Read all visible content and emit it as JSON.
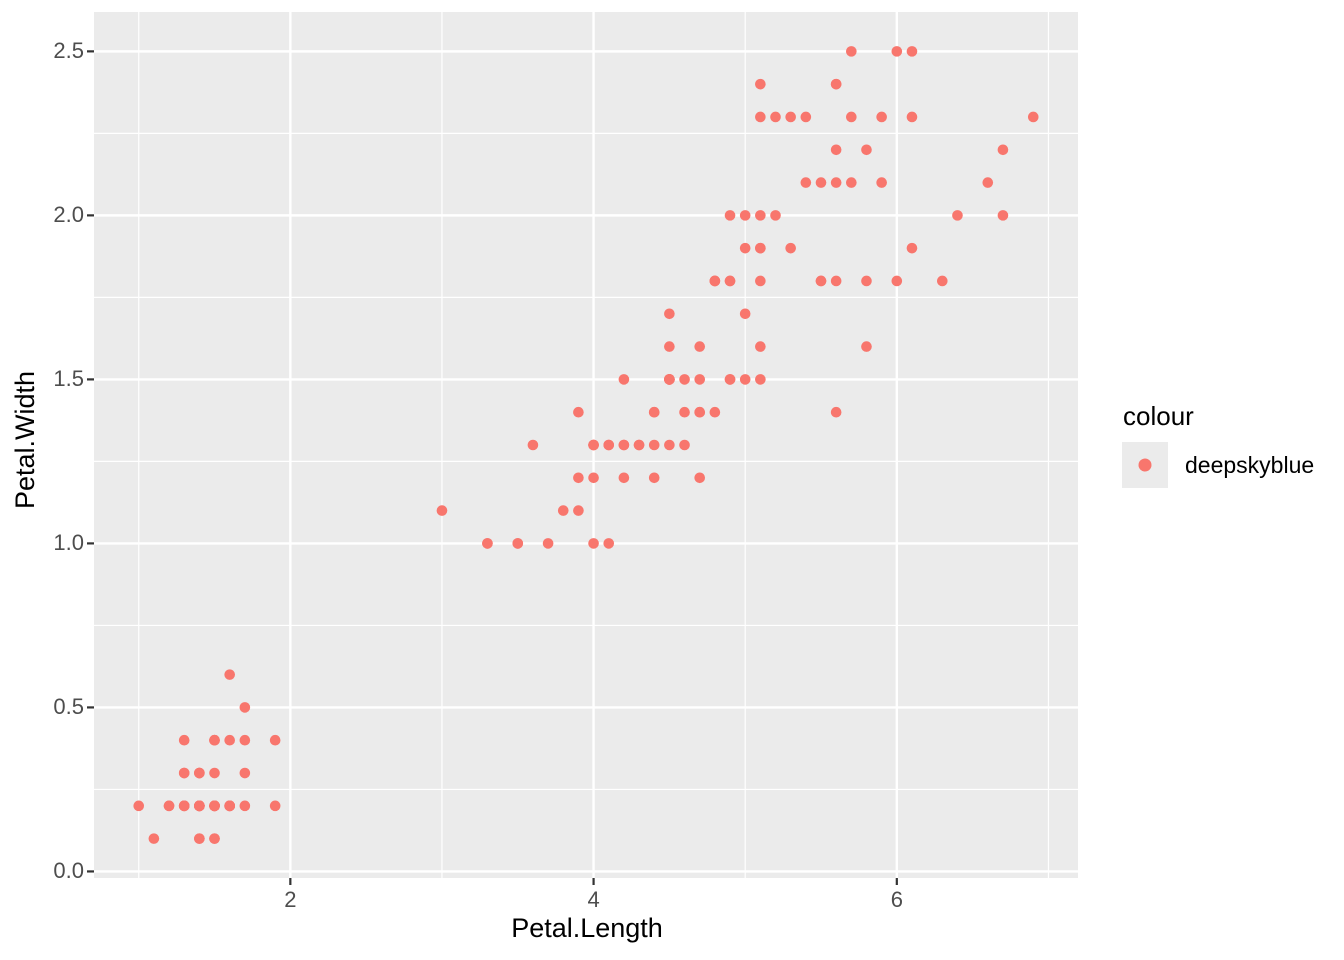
{
  "colors": {
    "background": "#FFFFFF",
    "panel_bg": "#EBEBEB",
    "grid": "#FFFFFF",
    "point": "#F8766D",
    "tick_mark": "#333333",
    "tick_label": "#4D4D4D",
    "axis_title": "#000000",
    "legend_key_bg": "#EBEBEB"
  },
  "chart_data": {
    "type": "scatter",
    "title": "",
    "xlabel": "Petal.Length",
    "ylabel": "Petal.Width",
    "xlim": [
      0.705,
      7.195
    ],
    "ylim": [
      -0.02,
      2.62
    ],
    "x_major_ticks": [
      2,
      4,
      6
    ],
    "x_tick_labels": [
      "2",
      "4",
      "6"
    ],
    "x_minor_ticks": [
      1,
      3,
      5,
      7
    ],
    "y_major_ticks": [
      0,
      0.5,
      1,
      1.5,
      2,
      2.5
    ],
    "y_tick_labels": [
      "0.0",
      "0.5",
      "1.0",
      "1.5",
      "2.0",
      "2.5"
    ],
    "y_minor_ticks": [
      0.25,
      0.75,
      1.25,
      1.75,
      2.25
    ],
    "grid": "on",
    "legend": {
      "title": "colour",
      "position": "right",
      "entries": [
        {
          "label": "deepskyblue",
          "color": "#F8766D",
          "marker": "circle"
        }
      ]
    },
    "series": [
      {
        "name": "deepskyblue",
        "color": "#F8766D",
        "points": [
          [
            1.4,
            0.2
          ],
          [
            1.4,
            0.2
          ],
          [
            1.3,
            0.2
          ],
          [
            1.5,
            0.2
          ],
          [
            1.4,
            0.2
          ],
          [
            1.7,
            0.4
          ],
          [
            1.4,
            0.3
          ],
          [
            1.5,
            0.2
          ],
          [
            1.4,
            0.2
          ],
          [
            1.5,
            0.1
          ],
          [
            1.5,
            0.2
          ],
          [
            1.6,
            0.2
          ],
          [
            1.4,
            0.1
          ],
          [
            1.1,
            0.1
          ],
          [
            1.2,
            0.2
          ],
          [
            1.5,
            0.4
          ],
          [
            1.3,
            0.4
          ],
          [
            1.4,
            0.3
          ],
          [
            1.7,
            0.3
          ],
          [
            1.5,
            0.3
          ],
          [
            1.7,
            0.2
          ],
          [
            1.5,
            0.4
          ],
          [
            1.0,
            0.2
          ],
          [
            1.7,
            0.5
          ],
          [
            1.9,
            0.2
          ],
          [
            1.6,
            0.2
          ],
          [
            1.6,
            0.4
          ],
          [
            1.5,
            0.2
          ],
          [
            1.4,
            0.2
          ],
          [
            1.6,
            0.2
          ],
          [
            1.6,
            0.2
          ],
          [
            1.5,
            0.4
          ],
          [
            1.5,
            0.1
          ],
          [
            1.4,
            0.2
          ],
          [
            1.5,
            0.2
          ],
          [
            1.2,
            0.2
          ],
          [
            1.3,
            0.2
          ],
          [
            1.4,
            0.1
          ],
          [
            1.3,
            0.2
          ],
          [
            1.5,
            0.2
          ],
          [
            1.3,
            0.3
          ],
          [
            1.3,
            0.3
          ],
          [
            1.3,
            0.2
          ],
          [
            1.6,
            0.6
          ],
          [
            1.9,
            0.4
          ],
          [
            1.4,
            0.3
          ],
          [
            1.6,
            0.2
          ],
          [
            1.4,
            0.2
          ],
          [
            1.5,
            0.2
          ],
          [
            1.4,
            0.2
          ],
          [
            4.7,
            1.4
          ],
          [
            4.5,
            1.5
          ],
          [
            4.9,
            1.5
          ],
          [
            4.0,
            1.3
          ],
          [
            4.6,
            1.5
          ],
          [
            4.5,
            1.3
          ],
          [
            4.7,
            1.6
          ],
          [
            3.3,
            1.0
          ],
          [
            4.6,
            1.3
          ],
          [
            3.9,
            1.4
          ],
          [
            3.5,
            1.0
          ],
          [
            4.2,
            1.5
          ],
          [
            4.0,
            1.0
          ],
          [
            4.7,
            1.4
          ],
          [
            3.6,
            1.3
          ],
          [
            4.4,
            1.4
          ],
          [
            4.5,
            1.5
          ],
          [
            4.1,
            1.0
          ],
          [
            4.5,
            1.5
          ],
          [
            3.9,
            1.1
          ],
          [
            4.8,
            1.8
          ],
          [
            4.0,
            1.3
          ],
          [
            4.9,
            1.5
          ],
          [
            4.7,
            1.2
          ],
          [
            4.3,
            1.3
          ],
          [
            4.4,
            1.4
          ],
          [
            4.8,
            1.4
          ],
          [
            5.0,
            1.7
          ],
          [
            4.5,
            1.5
          ],
          [
            3.5,
            1.0
          ],
          [
            3.8,
            1.1
          ],
          [
            3.7,
            1.0
          ],
          [
            3.9,
            1.2
          ],
          [
            5.1,
            1.6
          ],
          [
            4.5,
            1.5
          ],
          [
            4.5,
            1.6
          ],
          [
            4.7,
            1.5
          ],
          [
            4.4,
            1.3
          ],
          [
            4.1,
            1.3
          ],
          [
            4.0,
            1.3
          ],
          [
            4.4,
            1.2
          ],
          [
            4.6,
            1.4
          ],
          [
            4.0,
            1.2
          ],
          [
            3.3,
            1.0
          ],
          [
            4.2,
            1.3
          ],
          [
            4.2,
            1.2
          ],
          [
            4.2,
            1.3
          ],
          [
            4.3,
            1.3
          ],
          [
            3.0,
            1.1
          ],
          [
            4.1,
            1.3
          ],
          [
            6.0,
            2.5
          ],
          [
            5.1,
            1.9
          ],
          [
            5.9,
            2.1
          ],
          [
            5.6,
            1.8
          ],
          [
            5.8,
            2.2
          ],
          [
            6.6,
            2.1
          ],
          [
            4.5,
            1.7
          ],
          [
            6.3,
            1.8
          ],
          [
            5.8,
            1.8
          ],
          [
            6.1,
            2.5
          ],
          [
            5.1,
            2.0
          ],
          [
            5.3,
            1.9
          ],
          [
            5.5,
            2.1
          ],
          [
            5.0,
            2.0
          ],
          [
            5.1,
            2.4
          ],
          [
            5.3,
            2.3
          ],
          [
            5.5,
            1.8
          ],
          [
            6.7,
            2.2
          ],
          [
            6.9,
            2.3
          ],
          [
            5.0,
            1.5
          ],
          [
            5.7,
            2.3
          ],
          [
            4.9,
            2.0
          ],
          [
            6.7,
            2.0
          ],
          [
            4.9,
            1.8
          ],
          [
            5.7,
            2.1
          ],
          [
            6.0,
            1.8
          ],
          [
            4.8,
            1.8
          ],
          [
            4.9,
            1.8
          ],
          [
            5.6,
            2.1
          ],
          [
            5.8,
            1.6
          ],
          [
            6.1,
            1.9
          ],
          [
            6.4,
            2.0
          ],
          [
            5.6,
            2.2
          ],
          [
            5.1,
            1.5
          ],
          [
            5.6,
            1.4
          ],
          [
            6.1,
            2.3
          ],
          [
            5.6,
            2.4
          ],
          [
            5.5,
            1.8
          ],
          [
            4.8,
            1.8
          ],
          [
            5.4,
            2.1
          ],
          [
            5.6,
            2.4
          ],
          [
            5.1,
            2.3
          ],
          [
            5.1,
            1.9
          ],
          [
            5.9,
            2.3
          ],
          [
            5.7,
            2.5
          ],
          [
            5.2,
            2.3
          ],
          [
            5.0,
            1.9
          ],
          [
            5.2,
            2.0
          ],
          [
            5.4,
            2.3
          ],
          [
            5.1,
            1.8
          ]
        ]
      }
    ]
  }
}
